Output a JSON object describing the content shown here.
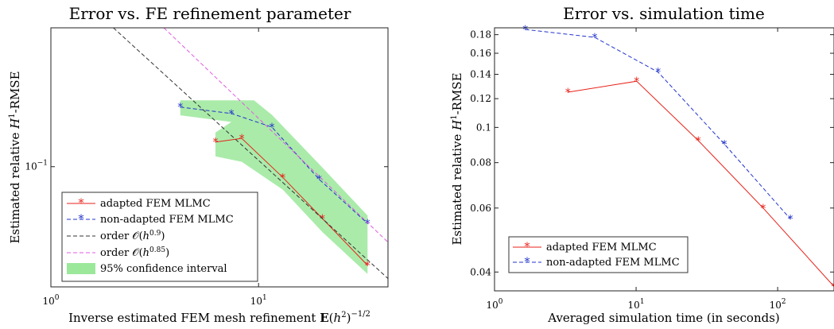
{
  "chart_data": [
    {
      "type": "line",
      "title": "Error vs. FE refinement parameter",
      "xlabel": "Inverse estimated FEM mesh refinement E(h²)^{-1/2}",
      "ylabel": "Estimated relative H¹-RMSE",
      "xscale": "log",
      "yscale": "log",
      "xlim": [
        1,
        42
      ],
      "ylim": [
        0.024,
        0.52
      ],
      "xticks": [
        {
          "v": 1,
          "label": "10^0"
        },
        {
          "v": 10,
          "label": "10^1"
        }
      ],
      "yticks": [
        {
          "v": 0.1,
          "label": "10^-1"
        }
      ],
      "legend_position": "bottom-left",
      "series": [
        {
          "name": "adapted FEM MLMC",
          "color": "#e8221a",
          "marker": "*",
          "dash": "solid",
          "x": [
            6.2,
            8.3,
            13.1,
            20.3,
            33.5
          ],
          "y": [
            0.134,
            0.14,
            0.088,
            0.054,
            0.031
          ]
        },
        {
          "name": "non-adapted FEM MLMC",
          "color": "#2233cc",
          "marker": "*",
          "dash": "dashed",
          "x": [
            4.2,
            7.4,
            11.6,
            19.6,
            33.5
          ],
          "y": [
            0.203,
            0.188,
            0.16,
            0.086,
            0.051
          ]
        },
        {
          "name": "order O(h^0.9)",
          "color": "#333333",
          "marker": "",
          "dash": "dashed",
          "x": [
            2.0,
            42.0
          ],
          "y": [
            0.52,
            0.0265
          ]
        },
        {
          "name": "order O(h^0.85)",
          "color": "#e05be0",
          "marker": "",
          "dash": "dashed",
          "x": [
            3.5,
            42.0
          ],
          "y": [
            0.52,
            0.0408
          ]
        }
      ],
      "band": {
        "name": "95% confidence interval",
        "color": "#9be89b",
        "polygon": [
          [
            4.2,
            0.184
          ],
          [
            4.2,
            0.22
          ],
          [
            9.5,
            0.22
          ],
          [
            11.6,
            0.185
          ],
          [
            19.6,
            0.103
          ],
          [
            33.5,
            0.056
          ],
          [
            33.5,
            0.046
          ],
          [
            33.5,
            0.028
          ],
          [
            20.3,
            0.046
          ],
          [
            13.1,
            0.076
          ],
          [
            8.3,
            0.106
          ],
          [
            6.2,
            0.113
          ],
          [
            6.2,
            0.15
          ],
          [
            7.4,
            0.17
          ]
        ]
      }
    },
    {
      "type": "line",
      "title": "Error vs. simulation time",
      "xlabel": "Averaged simulation time (in seconds)",
      "ylabel": "Estimated relative H¹-RMSE",
      "xscale": "log",
      "yscale": "log",
      "xlim": [
        1,
        250
      ],
      "ylim": [
        0.0355,
        0.188
      ],
      "xticks": [
        {
          "v": 1,
          "label": "10^0"
        },
        {
          "v": 10,
          "label": "10^1"
        },
        {
          "v": 100,
          "label": "10^2"
        }
      ],
      "yticks": [
        {
          "v": 0.04,
          "label": "0.04"
        },
        {
          "v": 0.06,
          "label": "0.06"
        },
        {
          "v": 0.08,
          "label": "0.08"
        },
        {
          "v": 0.1,
          "label": "0.1"
        },
        {
          "v": 0.12,
          "label": "0.12"
        },
        {
          "v": 0.14,
          "label": "0.14"
        },
        {
          "v": 0.16,
          "label": "0.16"
        },
        {
          "v": 0.18,
          "label": "0.18"
        }
      ],
      "legend_position": "bottom-left",
      "series": [
        {
          "name": "adapted FEM MLMC",
          "color": "#e8221a",
          "marker": "*",
          "dash": "solid",
          "x": [
            3.3,
            10.1,
            27.5,
            79.0,
            250.0
          ],
          "y": [
            0.125,
            0.134,
            0.092,
            0.06,
            0.0365
          ]
        },
        {
          "name": "non-adapted FEM MLMC",
          "color": "#2233cc",
          "marker": "*",
          "dash": "dashed",
          "x": [
            1.65,
            5.1,
            14.3,
            42.0,
            123.0
          ],
          "y": [
            0.186,
            0.177,
            0.142,
            0.09,
            0.056
          ]
        }
      ]
    }
  ]
}
